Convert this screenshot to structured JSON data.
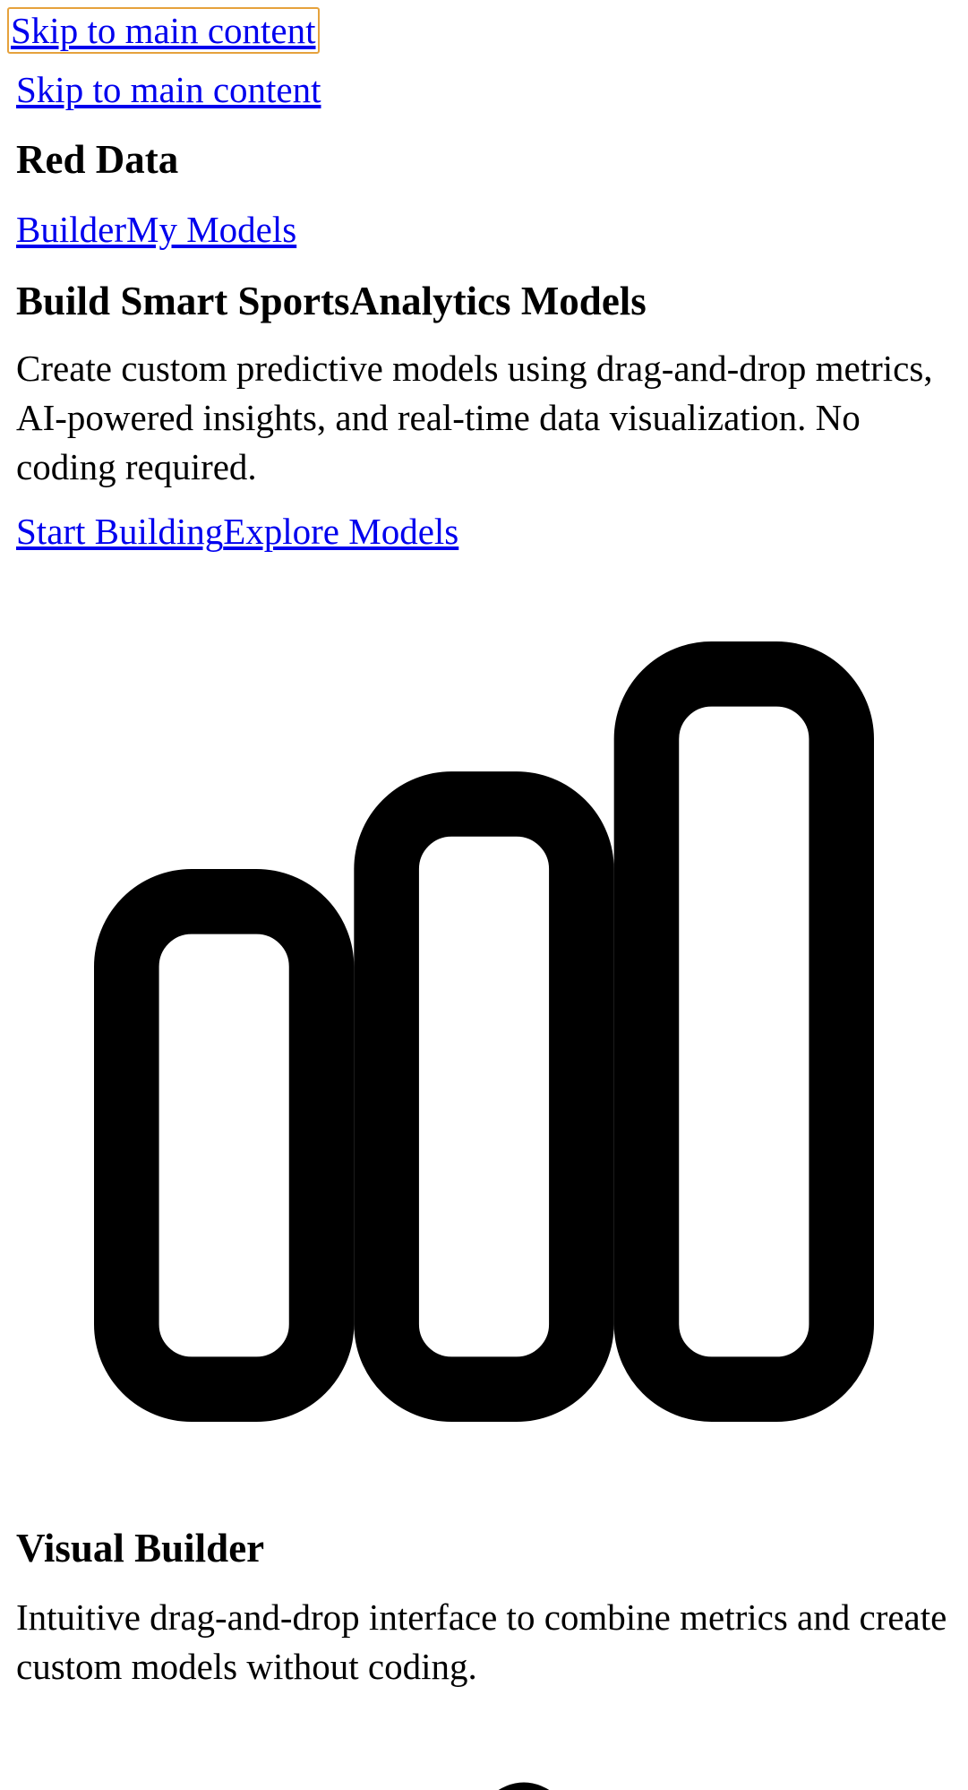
{
  "skip_links": {
    "focused_label": "Skip to main content",
    "label": "Skip to main content"
  },
  "header": {
    "brand": "Red Data",
    "nav": {
      "builder": "Builder",
      "my_models": "My Models"
    }
  },
  "hero": {
    "title": "Build Smart SportsAnalytics Models",
    "description": "Create custom predictive models using drag-and-drop metrics, AI-powered insights, and real-time data visualization. No coding required.",
    "cta_primary": "Start Building",
    "cta_secondary": "Explore Models",
    "icon": "bar-chart-icon"
  },
  "features": [
    {
      "title": "Visual Builder",
      "description": "Intuitive drag-and-drop interface to combine metrics and create custom models without coding."
    }
  ],
  "colors": {
    "link": "#0000ee",
    "focus_ring": "#e6a23c",
    "text": "#000000",
    "background": "#ffffff"
  }
}
